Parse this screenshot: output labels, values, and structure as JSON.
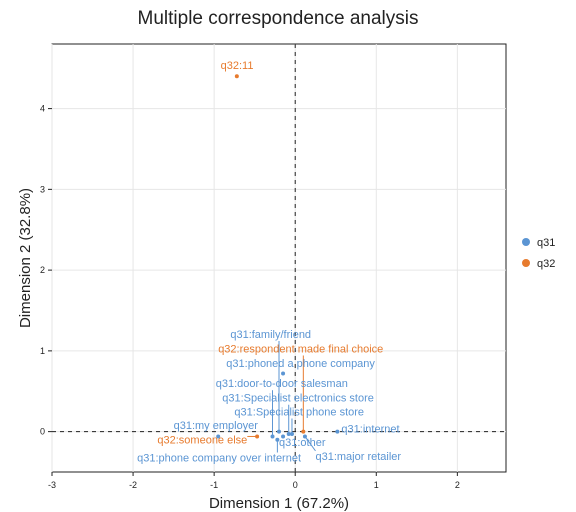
{
  "chart_data": {
    "type": "scatter",
    "title": "Multiple correspondence analysis",
    "xlabel": "Dimension 1 (67.2%)",
    "ylabel": "Dimension 2 (32.8%)",
    "xlim": [
      -3,
      2.6
    ],
    "ylim": [
      -0.5,
      4.8
    ],
    "xticks": [
      "-3",
      "-2",
      "-1",
      "0",
      "1",
      "2"
    ],
    "yticks": [
      "0",
      "1",
      "2",
      "3",
      "4"
    ],
    "grid": true,
    "reference_lines": {
      "x": 0,
      "y": 0,
      "style": "dashed"
    },
    "legend": {
      "position": "right"
    },
    "series": [
      {
        "name": "q31",
        "color": "#5b95d3",
        "points": [
          {
            "label": "q31:family/friend",
            "x": -0.2,
            "y": 0.0,
            "label_x": -0.8,
            "label_y": 1.16
          },
          {
            "label": "q31:phoned a phone company",
            "x": -0.15,
            "y": 0.72,
            "label_x": -0.85,
            "label_y": 0.8
          },
          {
            "label": "q31:door-to-door salesman",
            "x": -0.28,
            "y": -0.06,
            "label_x": -0.98,
            "label_y": 0.55
          },
          {
            "label": "q31:Specialist electronics store",
            "x": -0.08,
            "y": -0.03,
            "label_x": -0.9,
            "label_y": 0.37
          },
          {
            "label": "q31:Specialist phone store",
            "x": -0.04,
            "y": -0.03,
            "label_x": -0.75,
            "label_y": 0.2
          },
          {
            "label": "q31:my employer",
            "x": -0.95,
            "y": -0.06,
            "label_x": -1.5,
            "label_y": 0.03
          },
          {
            "label": "q31:internet",
            "x": 0.52,
            "y": 0.0,
            "label_x": 0.57,
            "label_y": -0.01
          },
          {
            "label": "q31:other",
            "x": -0.15,
            "y": -0.06,
            "label_x": -0.2,
            "label_y": -0.18
          },
          {
            "label": "q31:phone company over internet",
            "x": -0.22,
            "y": -0.1,
            "label_x": -1.95,
            "label_y": -0.37
          },
          {
            "label": "q31:major retailer",
            "x": 0.12,
            "y": -0.06,
            "label_x": 0.25,
            "label_y": -0.35
          }
        ]
      },
      {
        "name": "q32",
        "color": "#e77b2e",
        "points": [
          {
            "label": "q32:11",
            "x": -0.72,
            "y": 4.4,
            "label_x": -0.92,
            "label_y": 4.49
          },
          {
            "label": "q32:respondent made final choice",
            "x": 0.1,
            "y": 0.0,
            "label_x": -0.95,
            "label_y": 0.98
          },
          {
            "label": "q32:someone else",
            "x": -0.47,
            "y": -0.06,
            "label_x": -1.7,
            "label_y": -0.15
          }
        ]
      }
    ]
  }
}
